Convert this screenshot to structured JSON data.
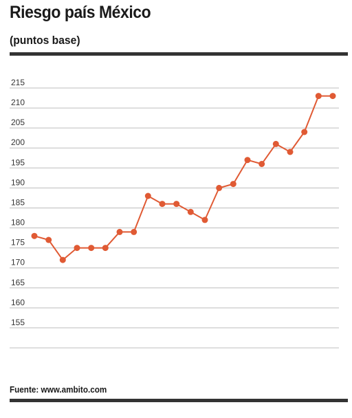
{
  "header": {
    "title": "Riesgo país México",
    "subtitle": "(puntos base)"
  },
  "footer": {
    "source": "Fuente: www.ambito.com"
  },
  "colors": {
    "series": "#e05a34",
    "grid": "#bdbdbd",
    "rule": "#333333"
  },
  "chart_data": {
    "type": "line",
    "title": "Riesgo país México",
    "subtitle": "(puntos base)",
    "xlabel": "",
    "ylabel": "",
    "ylim": [
      150,
      215
    ],
    "yticks": [
      215,
      210,
      205,
      200,
      195,
      190,
      185,
      180,
      175,
      170,
      165,
      160,
      155
    ],
    "grid": true,
    "legend": "none",
    "series": [
      {
        "values": [
          178,
          177,
          172,
          175,
          175,
          175,
          179,
          179,
          188,
          186,
          186,
          184,
          182,
          190,
          191,
          197,
          196,
          201,
          199,
          204,
          213,
          213
        ]
      }
    ]
  }
}
